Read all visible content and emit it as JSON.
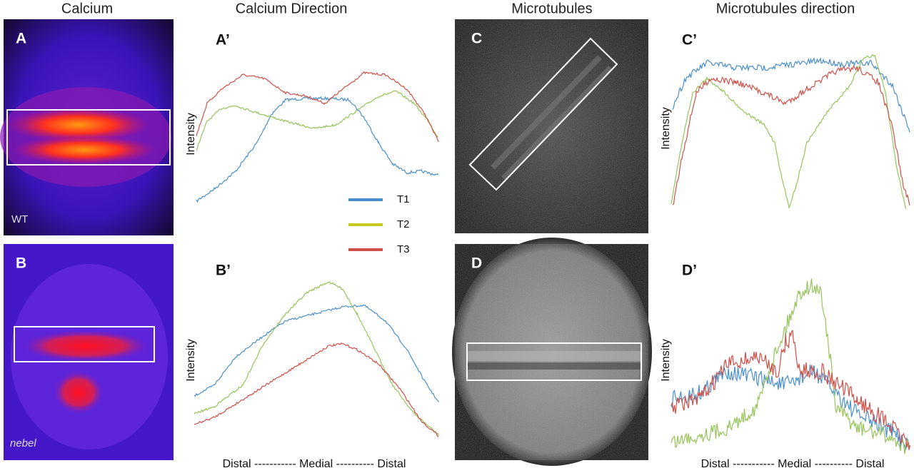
{
  "columns": [
    "Calcium",
    "Calcium Direction",
    "Microtubules",
    "Microtubules direction"
  ],
  "images": [
    {
      "label": "A",
      "note": "WT"
    },
    {
      "label": "B",
      "note": "nebel"
    },
    {
      "label": "C"
    },
    {
      "label": "D"
    }
  ],
  "plots": [
    {
      "label": "A’"
    },
    {
      "label": "B’"
    },
    {
      "label": "C’"
    },
    {
      "label": "D’"
    }
  ],
  "legend": [
    {
      "name": "T1",
      "color": "#4a8fcc"
    },
    {
      "name": "T2",
      "color": "#c9c81e"
    },
    {
      "name": "T3",
      "color": "#cf5048"
    }
  ],
  "y_label": "Intensity",
  "x_label": "Distal ----------- Medial ---------- Distal"
}
